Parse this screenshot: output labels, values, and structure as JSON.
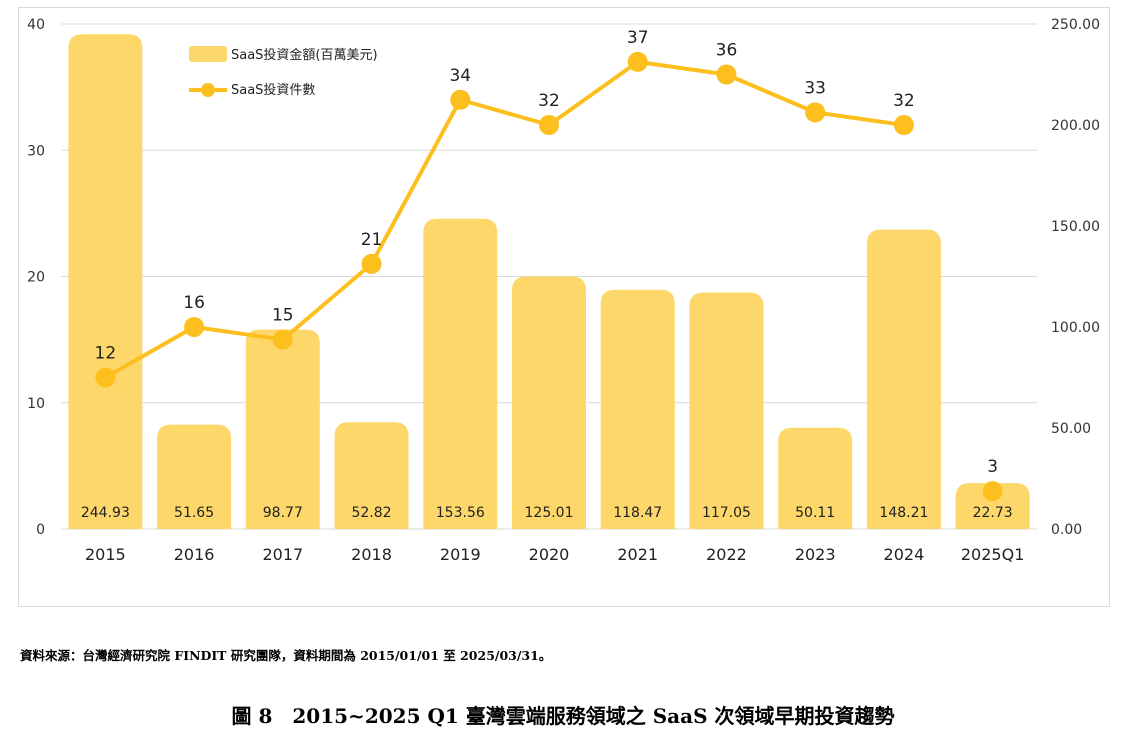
{
  "chart_data": {
    "type": "bar",
    "categories": [
      "2015",
      "2016",
      "2017",
      "2018",
      "2019",
      "2020",
      "2021",
      "2022",
      "2023",
      "2024",
      "2025Q1"
    ],
    "series": [
      {
        "name": "SaaS投資金額(百萬美元)",
        "chart_type": "bar",
        "axis": "right",
        "color": "#FDD76A",
        "values": [
          244.93,
          51.65,
          98.77,
          52.82,
          153.56,
          125.01,
          118.47,
          117.05,
          50.11,
          148.21,
          22.73
        ],
        "value_labels": [
          "244.93",
          "51.65",
          "98.77",
          "52.82",
          "153.56",
          "125.01",
          "118.47",
          "117.05",
          "50.11",
          "148.21",
          "22.73"
        ]
      },
      {
        "name": "SaaS投資件數",
        "chart_type": "line",
        "axis": "left",
        "color": "#FDBF1E",
        "values": [
          12,
          16,
          15,
          21,
          34,
          32,
          37,
          36,
          33,
          32,
          3
        ],
        "connected_points": 10
      }
    ],
    "y_left": {
      "ylim": [
        0,
        40
      ],
      "ticks": [
        "0",
        "10",
        "20",
        "30",
        "40"
      ],
      "tick_values": [
        0,
        10,
        20,
        30,
        40
      ]
    },
    "y_right": {
      "ylim": [
        0,
        250
      ],
      "ticks": [
        "0.00",
        "50.00",
        "100.00",
        "150.00",
        "200.00",
        "250.00"
      ],
      "tick_values": [
        0,
        50,
        100,
        150,
        200,
        250
      ]
    },
    "grid": true,
    "legend_position": "top-left"
  },
  "source_note": "資料來源：台灣經濟研究院 FINDIT 研究團隊，資料期間為 2015/01/01 至 2025/03/31。",
  "figure_caption": "圖 8　2015~2025 Q1 臺灣雲端服務領域之 SaaS 次領域早期投資趨勢"
}
